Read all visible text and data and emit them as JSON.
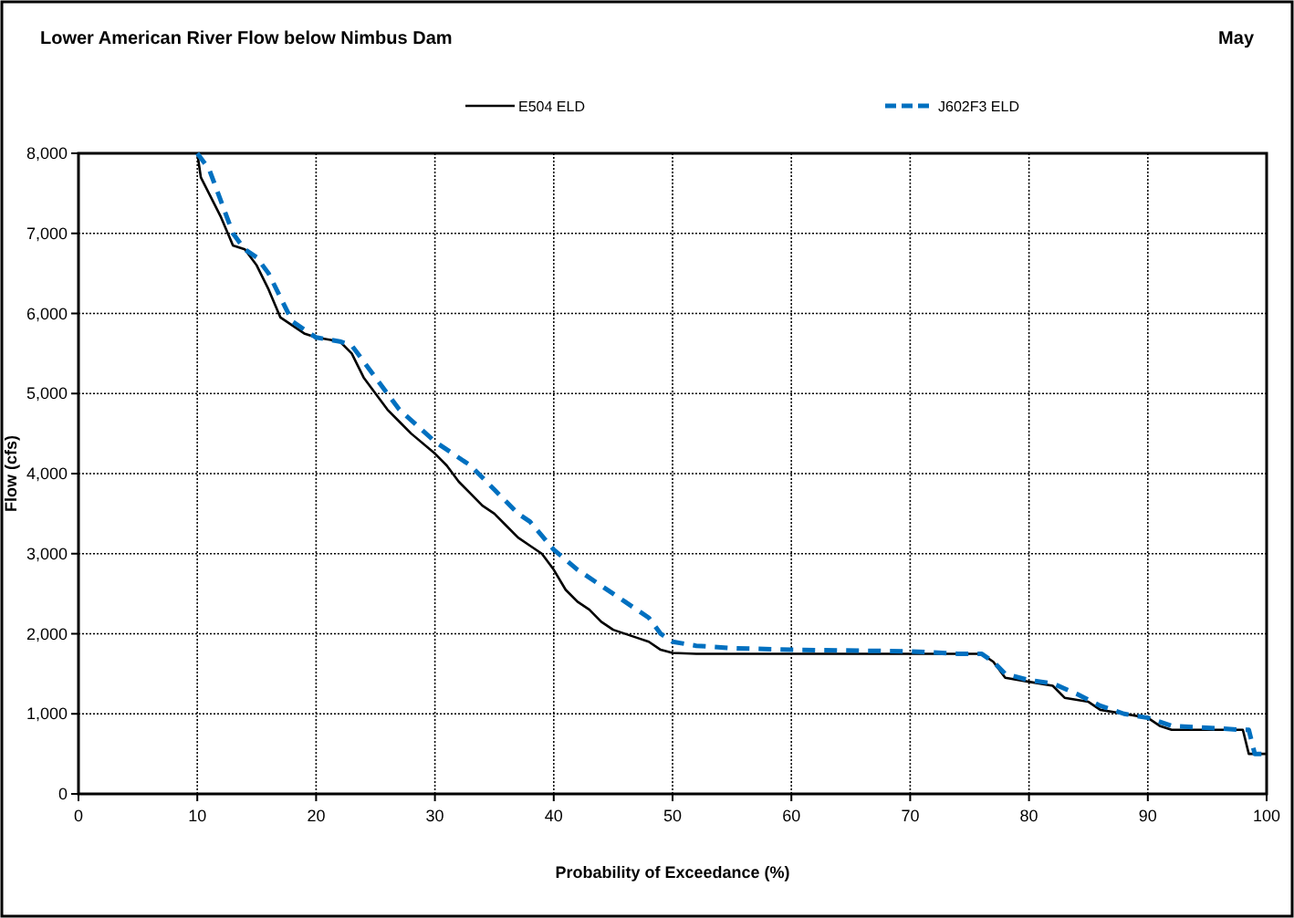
{
  "chart_data": {
    "type": "line",
    "title": "Lower American River Flow below Nimbus Dam",
    "subtitle": "May",
    "xlabel": "Probability of Exceedance (%)",
    "ylabel": "Flow (cfs)",
    "xlim": [
      0,
      100
    ],
    "xticks": [
      0,
      10,
      20,
      30,
      40,
      50,
      60,
      70,
      80,
      90,
      100
    ],
    "ylim": [
      0,
      8000
    ],
    "yticks": [
      {
        "value": 0,
        "label": "0"
      },
      {
        "value": 1000,
        "label": "1,000"
      },
      {
        "value": 2000,
        "label": "2,000"
      },
      {
        "value": 3000,
        "label": "3,000"
      },
      {
        "value": 4000,
        "label": "4,000"
      },
      {
        "value": 5000,
        "label": "5,000"
      },
      {
        "value": 6000,
        "label": "6,000"
      },
      {
        "value": 7000,
        "label": "7,000"
      },
      {
        "value": 8000,
        "label": "8,000"
      }
    ],
    "grid": true,
    "legend": "top",
    "marker": "none",
    "series": [
      {
        "name": "E504 ELD",
        "color": "#000000",
        "line_style": "solid",
        "x": [
          10,
          10.3,
          12,
          13,
          14,
          15,
          16,
          17,
          18,
          19,
          20,
          22,
          23,
          24,
          25,
          26,
          27,
          28,
          30,
          31,
          32,
          33,
          34,
          35,
          36,
          37,
          38,
          39,
          40,
          41,
          42,
          43,
          44,
          45,
          47,
          48,
          49,
          50,
          52,
          76,
          77,
          78,
          80,
          82,
          83,
          85,
          86,
          88,
          90,
          91,
          92,
          98,
          98.5,
          100
        ],
        "values": [
          8000,
          7700,
          7200,
          6850,
          6800,
          6600,
          6300,
          5950,
          5850,
          5750,
          5700,
          5650,
          5500,
          5200,
          5000,
          4800,
          4650,
          4500,
          4250,
          4100,
          3900,
          3750,
          3600,
          3500,
          3350,
          3200,
          3100,
          3000,
          2800,
          2550,
          2400,
          2300,
          2150,
          2050,
          1950,
          1900,
          1800,
          1760,
          1750,
          1750,
          1650,
          1450,
          1400,
          1350,
          1200,
          1150,
          1050,
          1000,
          950,
          850,
          800,
          800,
          500,
          500
        ]
      },
      {
        "name": "J602F3 ELD",
        "color": "#0070c0",
        "line_style": "dashed",
        "x": [
          10,
          11,
          12,
          13,
          14,
          15,
          16,
          17,
          18,
          20,
          22,
          23,
          24,
          25,
          27,
          30,
          33,
          35,
          37,
          38,
          40,
          42,
          44,
          46,
          48,
          49,
          50,
          52,
          55,
          60,
          70,
          74,
          76,
          77,
          78,
          80,
          82,
          84,
          86,
          88,
          90,
          92,
          98,
          98.5,
          99,
          100
        ],
        "values": [
          8000,
          7800,
          7400,
          7000,
          6800,
          6700,
          6500,
          6200,
          5900,
          5700,
          5650,
          5600,
          5400,
          5200,
          4800,
          4400,
          4100,
          3800,
          3500,
          3400,
          3050,
          2800,
          2600,
          2400,
          2200,
          2000,
          1900,
          1850,
          1820,
          1800,
          1780,
          1750,
          1750,
          1650,
          1500,
          1420,
          1380,
          1250,
          1100,
          1000,
          950,
          850,
          800,
          800,
          500,
          500
        ]
      }
    ]
  }
}
